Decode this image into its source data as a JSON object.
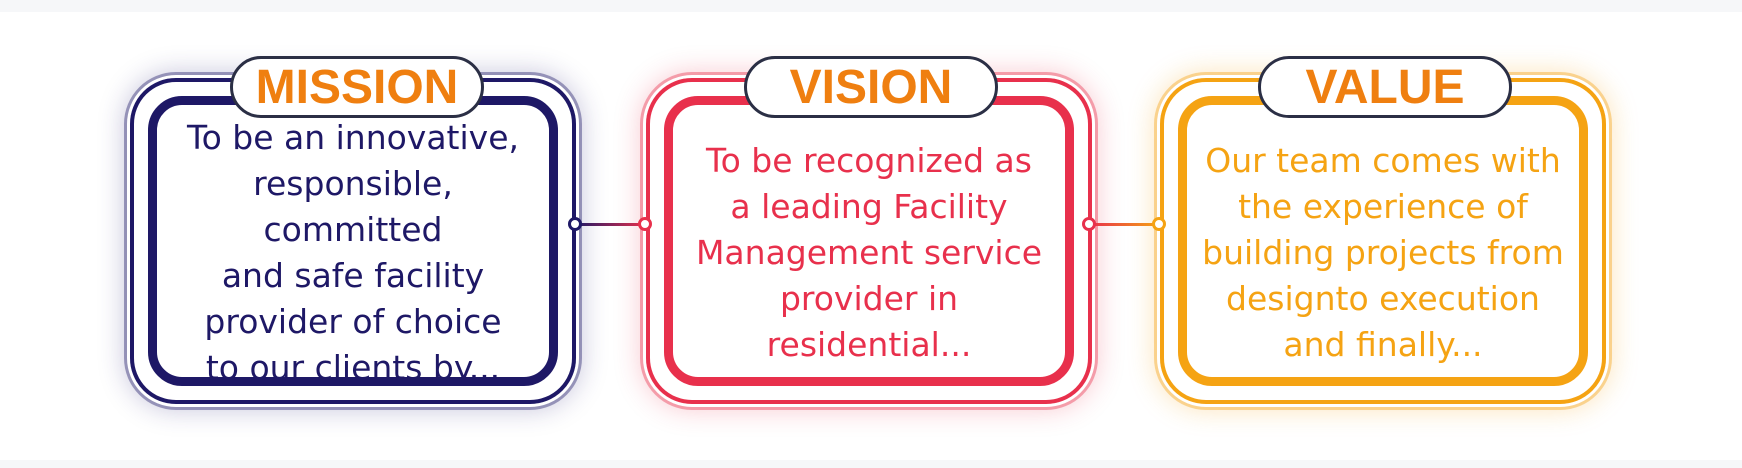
{
  "colors": {
    "mission": "#1e1866",
    "vision": "#e8304c",
    "value": "#f5a313",
    "title": "#ef7f10"
  },
  "cards": [
    {
      "key": "mission",
      "title": "MISSION",
      "text": "To be an innovative,\nresponsible, committed\nand safe facility\nprovider of choice\nto our clients by..."
    },
    {
      "key": "vision",
      "title": "VISION",
      "text": "To be recognized as\na leading Facility\nManagement service\nprovider in residential..."
    },
    {
      "key": "value",
      "title": "VALUE",
      "text": "Our team comes with\nthe experience of\nbuilding projects from\ndesignto execution\nand finally..."
    }
  ]
}
